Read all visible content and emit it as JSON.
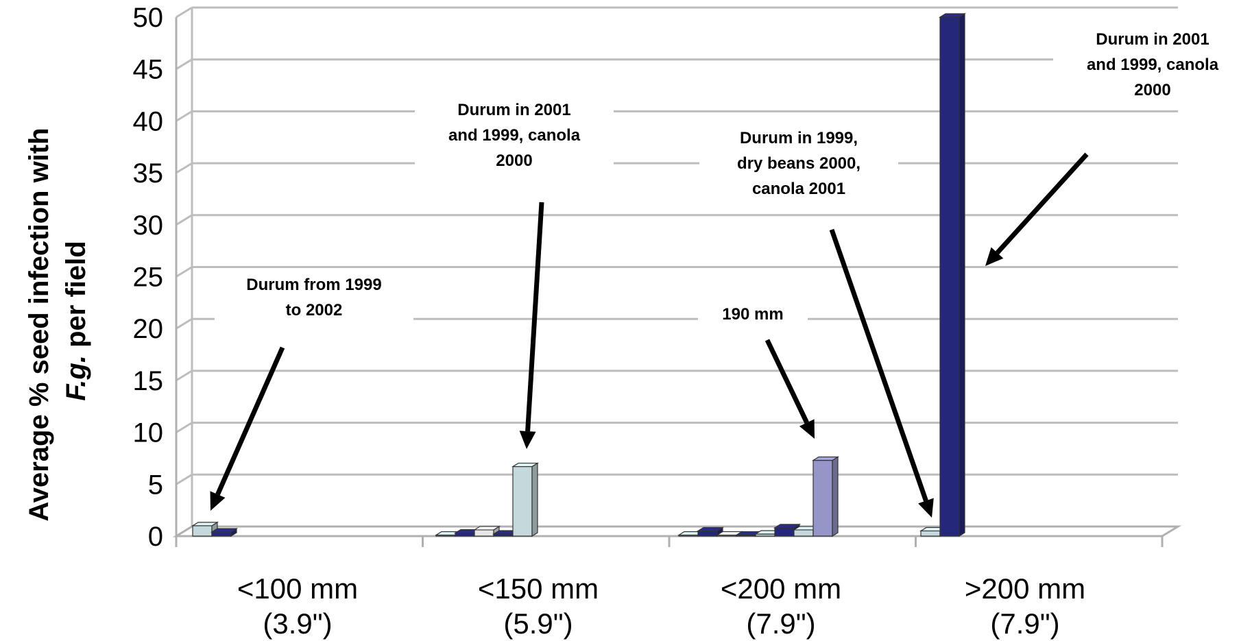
{
  "chart_data": {
    "type": "bar",
    "ylabel_line1": "Average % seed infection with",
    "ylabel_line2_italic": "F.g.",
    "ylabel_line2_rest": " per field",
    "ylim": [
      0,
      50
    ],
    "yticks": [
      "0",
      "5",
      "10",
      "15",
      "20",
      "25",
      "30",
      "35",
      "40",
      "45",
      "50"
    ],
    "grid": true,
    "categories": [
      {
        "line1": "<100 mm",
        "line2": "(3.9\")"
      },
      {
        "line1": "<150 mm",
        "line2": "(5.9\")"
      },
      {
        "line1": "<200 mm",
        "line2": "(7.9\")"
      },
      {
        "line1": ">200 mm",
        "line2": "(7.9\")"
      }
    ],
    "bars": [
      {
        "category": 0,
        "slot": 0,
        "value": 1.0,
        "color": "#c5d9dc"
      },
      {
        "category": 0,
        "slot": 1,
        "value": 0.4,
        "color": "#25287a"
      },
      {
        "category": 1,
        "slot": 0,
        "value": 0.1,
        "color": "#c5d9dc"
      },
      {
        "category": 1,
        "slot": 1,
        "value": 0.3,
        "color": "#25287a"
      },
      {
        "category": 1,
        "slot": 2,
        "value": 0.6,
        "color": "#e6e6e6"
      },
      {
        "category": 1,
        "slot": 3,
        "value": 0.2,
        "color": "#25287a"
      },
      {
        "category": 1,
        "slot": 4,
        "value": 6.7,
        "color": "#c5d9dc"
      },
      {
        "category": 2,
        "slot": 0,
        "value": 0.1,
        "color": "#c5d9dc"
      },
      {
        "category": 2,
        "slot": 1,
        "value": 0.5,
        "color": "#25287a"
      },
      {
        "category": 2,
        "slot": 2,
        "value": 0.1,
        "color": "#e6e6e6"
      },
      {
        "category": 2,
        "slot": 3,
        "value": 0.1,
        "color": "#25287a"
      },
      {
        "category": 2,
        "slot": 4,
        "value": 0.2,
        "color": "#c5d9dc"
      },
      {
        "category": 2,
        "slot": 5,
        "value": 0.8,
        "color": "#25287a"
      },
      {
        "category": 2,
        "slot": 6,
        "value": 0.6,
        "color": "#c5d9dc"
      },
      {
        "category": 2,
        "slot": 7,
        "value": 7.3,
        "color": "#9595c8"
      },
      {
        "category": 3,
        "slot": 0,
        "value": 0.5,
        "color": "#c5d9dc"
      },
      {
        "category": 3,
        "slot": 1,
        "value": 50.0,
        "color": "#25287a"
      }
    ],
    "annotations": [
      {
        "lines": [
          "Durum from 1999",
          "to 2002"
        ]
      },
      {
        "lines": [
          "Durum in 2001",
          "and 1999, canola",
          "2000"
        ]
      },
      {
        "lines": [
          "190 mm"
        ]
      },
      {
        "lines": [
          "Durum in 1999,",
          "dry beans 2000,",
          "canola 2001"
        ]
      },
      {
        "lines": [
          "Durum in 2001",
          "and 1999, canola",
          "2000"
        ]
      }
    ]
  }
}
